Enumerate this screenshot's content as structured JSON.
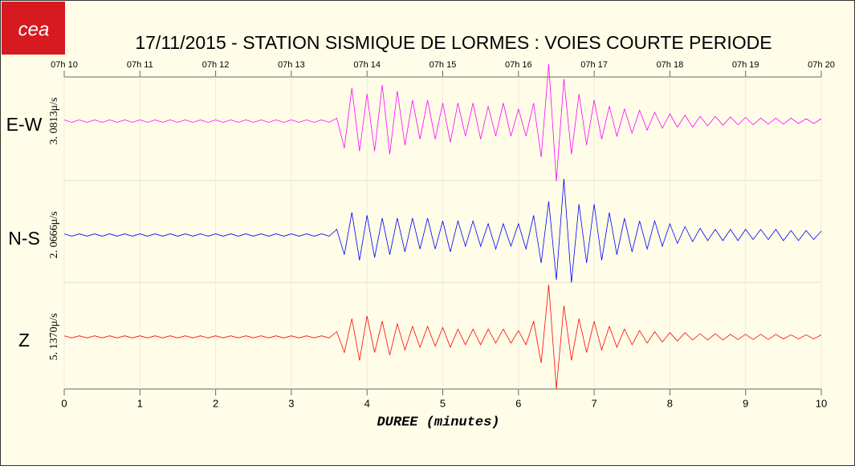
{
  "logo": "cea",
  "chart_data": {
    "type": "seismogram",
    "title": "17/11/2015  -  STATION SISMIQUE DE LORMES : VOIES COURTE PERIODE",
    "x_label": "DUREE (minutes)",
    "xlim": [
      0,
      10
    ],
    "xticks": [
      0,
      1,
      2,
      3,
      4,
      5,
      6,
      7,
      8,
      9,
      10
    ],
    "top_xticks": [
      {
        "value": 0,
        "label": "07h 10"
      },
      {
        "value": 1,
        "label": "07h 11"
      },
      {
        "value": 2,
        "label": "07h 12"
      },
      {
        "value": 3,
        "label": "07h 13"
      },
      {
        "value": 4,
        "label": "07h 14"
      },
      {
        "value": 5,
        "label": "07h 15"
      },
      {
        "value": 6,
        "label": "07h 16"
      },
      {
        "value": 7,
        "label": "07h 17"
      },
      {
        "value": 8,
        "label": "07h 18"
      },
      {
        "value": 9,
        "label": "07h 19"
      },
      {
        "value": 10,
        "label": "07h 20"
      }
    ],
    "grid": true,
    "ylim": [
      -1,
      1
    ],
    "x": [
      0,
      0.1,
      0.2,
      0.3,
      0.4,
      0.5,
      0.6,
      0.7,
      0.8,
      0.9,
      1,
      1.1,
      1.2,
      1.3,
      1.4,
      1.5,
      1.6,
      1.7,
      1.8,
      1.9,
      2,
      2.1,
      2.2,
      2.3,
      2.4,
      2.5,
      2.6,
      2.7,
      2.8,
      2.9,
      3,
      3.1,
      3.2,
      3.3,
      3.4,
      3.5,
      3.6,
      3.7,
      3.8,
      3.9,
      4,
      4.1,
      4.2,
      4.3,
      4.4,
      4.5,
      4.6,
      4.7,
      4.8,
      4.9,
      5,
      5.1,
      5.2,
      5.3,
      5.4,
      5.5,
      5.6,
      5.7,
      5.8,
      5.9,
      6,
      6.1,
      6.2,
      6.3,
      6.4,
      6.5,
      6.6,
      6.7,
      6.8,
      6.9,
      7,
      7.1,
      7.2,
      7.3,
      7.4,
      7.5,
      7.6,
      7.7,
      7.8,
      7.9,
      8,
      8.1,
      8.2,
      8.3,
      8.4,
      8.5,
      8.6,
      8.7,
      8.8,
      8.9,
      9,
      9.1,
      9.2,
      9.3,
      9.4,
      9.5,
      9.6,
      9.7,
      9.8,
      9.9,
      10
    ],
    "series": [
      {
        "name": "E-W",
        "scale_label": "3. 0813μ/s",
        "color": "#ff00ff",
        "values": [
          0.02,
          -0.02,
          0.02,
          -0.02,
          0.02,
          -0.02,
          0.02,
          -0.02,
          0.02,
          -0.02,
          0.02,
          -0.02,
          0.02,
          -0.02,
          0.02,
          -0.02,
          0.02,
          -0.02,
          0.02,
          -0.02,
          0.02,
          -0.02,
          0.02,
          -0.02,
          0.02,
          -0.02,
          0.02,
          -0.02,
          0.02,
          -0.02,
          0.02,
          -0.02,
          0.02,
          -0.02,
          0.02,
          -0.02,
          0.05,
          -0.45,
          0.55,
          -0.5,
          0.45,
          -0.5,
          0.6,
          -0.55,
          0.5,
          -0.4,
          0.35,
          -0.3,
          0.35,
          -0.3,
          0.3,
          -0.35,
          0.3,
          -0.25,
          0.3,
          -0.3,
          0.25,
          -0.25,
          0.3,
          -0.25,
          0.2,
          -0.25,
          0.3,
          -0.6,
          0.95,
          -1.0,
          0.7,
          -0.55,
          0.45,
          -0.4,
          0.35,
          -0.3,
          0.25,
          -0.25,
          0.2,
          -0.2,
          0.18,
          -0.15,
          0.15,
          -0.12,
          0.12,
          -0.1,
          0.1,
          -0.1,
          0.08,
          -0.08,
          0.08,
          -0.07,
          0.07,
          -0.06,
          0.06,
          -0.06,
          0.05,
          -0.05,
          0.05,
          -0.05,
          0.05,
          -0.04,
          0.04,
          -0.04,
          0.04
        ]
      },
      {
        "name": "N-S",
        "scale_label": "2. 0666μ/s",
        "color": "#0000ff",
        "values": [
          0.02,
          -0.02,
          0.02,
          -0.02,
          0.02,
          -0.02,
          0.02,
          -0.02,
          0.02,
          -0.02,
          0.02,
          -0.02,
          0.02,
          -0.02,
          0.02,
          -0.02,
          0.02,
          -0.02,
          0.02,
          -0.02,
          0.02,
          -0.02,
          0.02,
          -0.02,
          0.02,
          -0.02,
          0.02,
          -0.02,
          0.02,
          -0.02,
          0.02,
          -0.02,
          0.02,
          -0.02,
          0.02,
          -0.02,
          0.1,
          -0.35,
          0.4,
          -0.45,
          0.35,
          -0.4,
          0.3,
          -0.35,
          0.3,
          -0.3,
          0.3,
          -0.25,
          0.3,
          -0.25,
          0.25,
          -0.3,
          0.25,
          -0.2,
          0.25,
          -0.2,
          0.2,
          -0.25,
          0.2,
          -0.2,
          0.2,
          -0.25,
          0.35,
          -0.5,
          0.6,
          -0.8,
          1.0,
          -0.85,
          0.55,
          -0.5,
          0.55,
          -0.45,
          0.4,
          -0.35,
          0.3,
          -0.3,
          0.25,
          -0.25,
          0.25,
          -0.2,
          0.2,
          -0.15,
          0.15,
          -0.12,
          0.12,
          -0.1,
          0.1,
          -0.1,
          0.1,
          -0.1,
          0.1,
          -0.08,
          0.1,
          -0.08,
          0.1,
          -0.1,
          0.08,
          -0.1,
          0.08,
          -0.08,
          0.07
        ]
      },
      {
        "name": "Z",
        "scale_label": "5. 1370μ/s",
        "color": "#ff0000",
        "values": [
          0.02,
          -0.02,
          0.02,
          -0.02,
          0.02,
          -0.02,
          0.02,
          -0.02,
          0.02,
          -0.02,
          0.02,
          -0.02,
          0.02,
          -0.02,
          0.02,
          -0.02,
          0.02,
          -0.02,
          0.02,
          -0.02,
          0.02,
          -0.02,
          0.02,
          -0.02,
          0.02,
          -0.02,
          0.02,
          -0.02,
          0.02,
          -0.02,
          0.02,
          -0.02,
          0.02,
          -0.02,
          0.02,
          -0.02,
          0.1,
          -0.3,
          0.35,
          -0.45,
          0.4,
          -0.3,
          0.3,
          -0.35,
          0.25,
          -0.25,
          0.2,
          -0.2,
          0.2,
          -0.18,
          0.18,
          -0.2,
          0.15,
          -0.15,
          0.15,
          -0.15,
          0.15,
          -0.12,
          0.15,
          -0.12,
          0.12,
          -0.15,
          0.3,
          -0.5,
          1.0,
          -1.0,
          0.6,
          -0.45,
          0.35,
          -0.3,
          0.3,
          -0.25,
          0.2,
          -0.2,
          0.15,
          -0.15,
          0.12,
          -0.12,
          0.1,
          -0.1,
          0.08,
          -0.08,
          0.08,
          -0.06,
          0.06,
          -0.06,
          0.06,
          -0.06,
          0.05,
          -0.05,
          0.05,
          -0.05,
          0.05,
          -0.05,
          0.05,
          -0.04,
          0.04,
          -0.04,
          0.04,
          -0.04,
          0.04
        ]
      }
    ]
  }
}
